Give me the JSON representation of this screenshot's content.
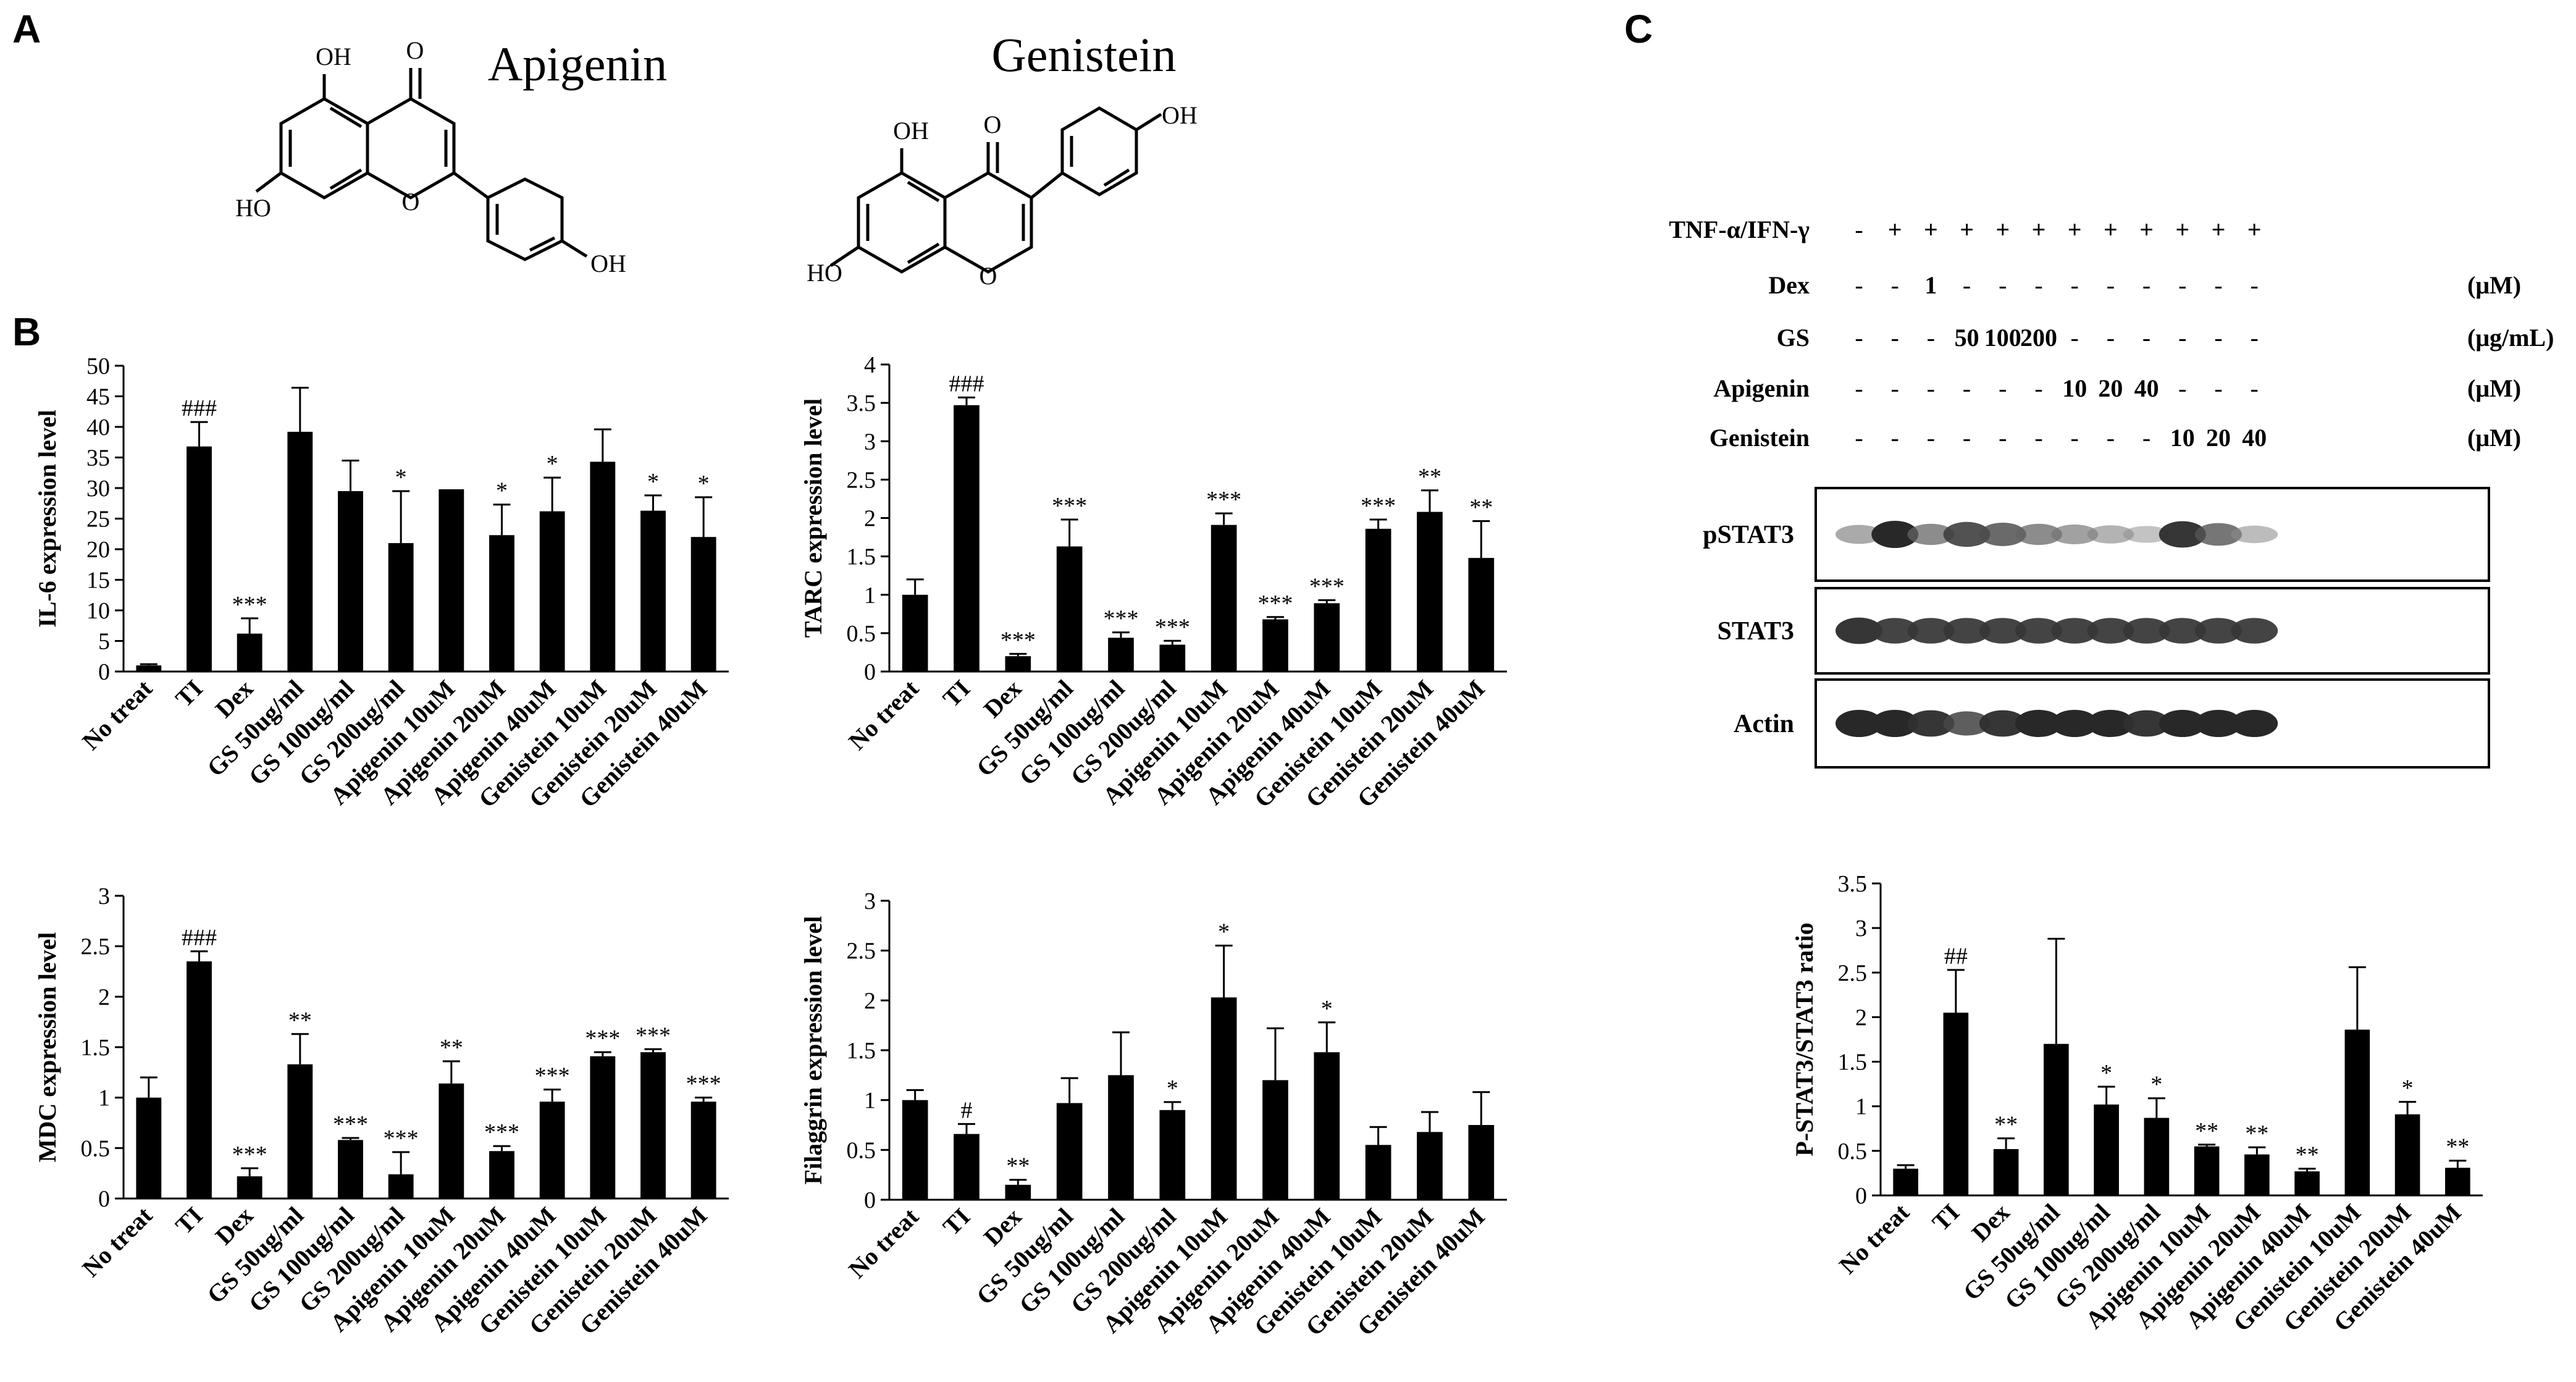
{
  "panels": {
    "a": "A",
    "b": "B",
    "c": "C"
  },
  "structures": {
    "apigenin": {
      "name": "Apigenin",
      "labels": [
        "OH",
        "O",
        "HO",
        "O",
        "OH"
      ]
    },
    "genistein": {
      "name": "Genistein",
      "labels": [
        "OH",
        "O",
        "OH",
        "HO",
        "O"
      ]
    }
  },
  "western": {
    "rows": [
      {
        "label": "TNF-α/IFN-γ",
        "unit": "",
        "values": [
          "-",
          "+",
          "+",
          "+",
          "+",
          "+",
          "+",
          "+",
          "+",
          "+",
          "+",
          "+"
        ]
      },
      {
        "label": "Dex",
        "unit": "(μM)",
        "values": [
          "-",
          "-",
          "1",
          "-",
          "-",
          "-",
          "-",
          "-",
          "-",
          "-",
          "-",
          "-"
        ]
      },
      {
        "label": "GS",
        "unit": "(μg/mL)",
        "values": [
          "-",
          "-",
          "-",
          "50",
          "100",
          "200",
          "-",
          "-",
          "-",
          "-",
          "-",
          "-"
        ]
      },
      {
        "label": "Apigenin",
        "unit": "(μM)",
        "values": [
          "-",
          "-",
          "-",
          "-",
          "-",
          "-",
          "10",
          "20",
          "40",
          "-",
          "-",
          "-"
        ]
      },
      {
        "label": "Genistein",
        "unit": "(μM)",
        "values": [
          "-",
          "-",
          "-",
          "-",
          "-",
          "-",
          "-",
          "-",
          "-",
          "10",
          "20",
          "40"
        ]
      }
    ],
    "blots": [
      {
        "label": "pSTAT3",
        "intensity": [
          0.45,
          1.0,
          0.6,
          0.85,
          0.75,
          0.6,
          0.5,
          0.4,
          0.3,
          0.95,
          0.7,
          0.35
        ]
      },
      {
        "label": "STAT3",
        "intensity": [
          0.95,
          0.9,
          0.9,
          0.9,
          0.9,
          0.9,
          0.9,
          0.9,
          0.9,
          0.9,
          0.9,
          0.9
        ]
      },
      {
        "label": "Actin",
        "intensity": [
          1.0,
          1.0,
          0.95,
          0.8,
          0.95,
          1.0,
          1.0,
          1.0,
          0.95,
          1.0,
          1.0,
          1.0
        ]
      }
    ]
  },
  "chart_data": [
    {
      "type": "bar",
      "ylabel": "IL-6 expression level",
      "ylim": [
        0,
        50
      ],
      "yticks": [
        "0",
        "5",
        "10",
        "15",
        "20",
        "25",
        "30",
        "35",
        "40",
        "45",
        "50"
      ],
      "categories": [
        "No treat",
        "TI",
        "Dex",
        "GS 50ug/ml",
        "GS 100ug/ml",
        "GS 200ug/ml",
        "Apigenin 10uM",
        "Apigenin 20uM",
        "Apigenin 40uM",
        "Genistein 10uM",
        "Genistein 20uM",
        "Genistein 40uM"
      ],
      "values": [
        1,
        36.8,
        6.2,
        39.2,
        29.5,
        21.0,
        29.8,
        22.3,
        26.2,
        34.3,
        26.3,
        22.0
      ],
      "errors": [
        0.2,
        4.0,
        2.5,
        7.2,
        5.0,
        8.5,
        0,
        5.0,
        5.5,
        5.3,
        2.5,
        6.5
      ],
      "annotations": [
        "",
        "###",
        "***",
        "",
        "",
        "*",
        "",
        "*",
        "*",
        "",
        "*",
        "*"
      ]
    },
    {
      "type": "bar",
      "ylabel": "TARC expression level",
      "ylim": [
        0,
        4
      ],
      "yticks": [
        "0",
        "0.5",
        "1",
        "1.5",
        "2",
        "2.5",
        "3",
        "3.5",
        "4"
      ],
      "categories": [
        "No treat",
        "TI",
        "Dex",
        "GS 50ug/ml",
        "GS 100ug/ml",
        "GS 200ug/ml",
        "Apigenin 10uM",
        "Apigenin 20uM",
        "Apigenin 40uM",
        "Genistein 10uM",
        "Genistein 20uM",
        "Genistein 40uM"
      ],
      "values": [
        1.0,
        3.47,
        0.2,
        1.63,
        0.44,
        0.35,
        1.91,
        0.68,
        0.89,
        1.86,
        2.08,
        1.48
      ],
      "errors": [
        0.2,
        0.1,
        0.03,
        0.35,
        0.07,
        0.05,
        0.15,
        0.03,
        0.04,
        0.12,
        0.28,
        0.48
      ],
      "annotations": [
        "",
        "###",
        "***",
        "***",
        "***",
        "***",
        "***",
        "***",
        "***",
        "***",
        "**",
        "**"
      ]
    },
    {
      "type": "bar",
      "ylabel": "MDC expression level",
      "ylim": [
        0,
        3
      ],
      "yticks": [
        "0",
        "0.5",
        "1",
        "1.5",
        "2",
        "2.5",
        "3"
      ],
      "categories": [
        "No treat",
        "TI",
        "Dex",
        "GS 50ug/ml",
        "GS 100ug/ml",
        "GS 200ug/ml",
        "Apigenin 10uM",
        "Apigenin 20uM",
        "Apigenin 40uM",
        "Genistein 10uM",
        "Genistein 20uM",
        "Genistein 40uM"
      ],
      "values": [
        1.0,
        2.35,
        0.22,
        1.33,
        0.58,
        0.24,
        1.14,
        0.47,
        0.96,
        1.41,
        1.45,
        0.96
      ],
      "errors": [
        0.2,
        0.1,
        0.08,
        0.3,
        0.02,
        0.22,
        0.22,
        0.05,
        0.12,
        0.04,
        0.03,
        0.04
      ],
      "annotations": [
        "",
        "###",
        "***",
        "**",
        "***",
        "***",
        "**",
        "***",
        "***",
        "***",
        "***",
        "***"
      ]
    },
    {
      "type": "bar",
      "ylabel": "Filaggrin expression level",
      "ylim": [
        0,
        3
      ],
      "yticks": [
        "0",
        "0.5",
        "1",
        "1.5",
        "2",
        "2.5",
        "3"
      ],
      "categories": [
        "No treat",
        "TI",
        "Dex",
        "GS 50ug/ml",
        "GS 100ug/ml",
        "GS 200ug/ml",
        "Apigenin 10uM",
        "Apigenin 20uM",
        "Apigenin 40uM",
        "Genistein 10uM",
        "Genistein 20uM",
        "Genistein 40uM"
      ],
      "values": [
        1.0,
        0.66,
        0.15,
        0.97,
        1.25,
        0.9,
        2.03,
        1.2,
        1.48,
        0.55,
        0.68,
        0.75
      ],
      "errors": [
        0.1,
        0.1,
        0.05,
        0.25,
        0.43,
        0.08,
        0.52,
        0.52,
        0.3,
        0.18,
        0.2,
        0.33
      ],
      "annotations": [
        "",
        "#",
        "**",
        "",
        "",
        "*",
        "*",
        "",
        "*",
        "",
        "",
        ""
      ]
    },
    {
      "type": "bar",
      "ylabel": "P-STAT3/STAT3 ratio",
      "ylim": [
        0,
        3.5
      ],
      "yticks": [
        "0",
        "0.5",
        "1",
        "1.5",
        "2",
        "2.5",
        "3",
        "3.5"
      ],
      "categories": [
        "No treat",
        "TI",
        "Dex",
        "GS 50ug/ml",
        "GS 100ug/ml",
        "GS 200ug/ml",
        "Apigenin 10uM",
        "Apigenin 20uM",
        "Apigenin 40uM",
        "Genistein 10uM",
        "Genistein 20uM",
        "Genistein 40uM"
      ],
      "values": [
        0.3,
        2.05,
        0.52,
        1.7,
        1.02,
        0.87,
        0.55,
        0.46,
        0.27,
        1.86,
        0.91,
        0.31
      ],
      "errors": [
        0.04,
        0.48,
        0.12,
        1.18,
        0.2,
        0.22,
        0.02,
        0.08,
        0.03,
        0.7,
        0.14,
        0.08
      ],
      "annotations": [
        "",
        "##",
        "**",
        "",
        "*",
        "*",
        "**",
        "**",
        "**",
        "",
        "*",
        "**"
      ]
    }
  ]
}
